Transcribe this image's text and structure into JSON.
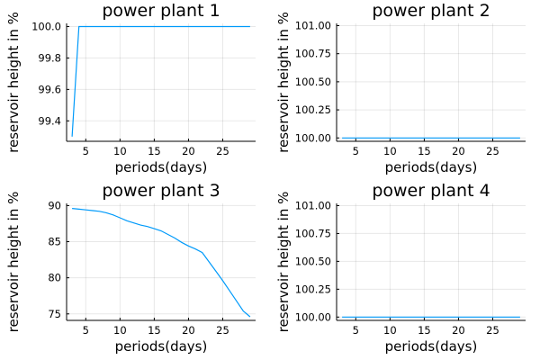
{
  "chart_data": [
    {
      "type": "line",
      "title": "power plant 1",
      "xlabel": "periods(days)",
      "ylabel": "reservoir height in %",
      "xlim": [
        2.2,
        29.8
      ],
      "ylim": [
        99.27,
        100.02
      ],
      "xticks": [
        5,
        10,
        15,
        20,
        25
      ],
      "xtick_labels": [
        "5",
        "10",
        "15",
        "20",
        "25"
      ],
      "yticks": [
        99.4,
        99.6,
        99.8,
        100.0
      ],
      "ytick_labels": [
        "99.4",
        "99.6",
        "99.8",
        "100.0"
      ],
      "grid": true,
      "legend": "none",
      "series_color": "#009AFA",
      "x": [
        3,
        4,
        5,
        10,
        15,
        20,
        25,
        29
      ],
      "y": [
        99.3,
        100.0,
        100.0,
        100.0,
        100.0,
        100.0,
        100.0,
        100.0
      ]
    },
    {
      "type": "line",
      "title": "power plant 2",
      "xlabel": "periods(days)",
      "ylabel": "reservoir height in %",
      "xlim": [
        2.2,
        29.8
      ],
      "ylim": [
        99.97,
        101.02
      ],
      "xticks": [
        5,
        10,
        15,
        20,
        25
      ],
      "xtick_labels": [
        "5",
        "10",
        "15",
        "20",
        "25"
      ],
      "yticks": [
        100.0,
        100.25,
        100.5,
        100.75,
        101.0
      ],
      "ytick_labels": [
        "100.00",
        "100.25",
        "100.50",
        "100.75",
        "101.00"
      ],
      "grid": true,
      "legend": "none",
      "series_color": "#009AFA",
      "x": [
        3,
        29
      ],
      "y": [
        100.0,
        100.0
      ]
    },
    {
      "type": "line",
      "title": "power plant 3",
      "xlabel": "periods(days)",
      "ylabel": "reservoir height in %",
      "xlim": [
        2.2,
        29.8
      ],
      "ylim": [
        74.1,
        90.3
      ],
      "xticks": [
        5,
        10,
        15,
        20,
        25
      ],
      "xtick_labels": [
        "5",
        "10",
        "15",
        "20",
        "25"
      ],
      "yticks": [
        75,
        80,
        85,
        90
      ],
      "ytick_labels": [
        "75",
        "80",
        "85",
        "90"
      ],
      "grid": true,
      "legend": "none",
      "series_color": "#009AFA",
      "x": [
        3,
        4,
        5,
        6,
        7,
        8,
        9,
        10,
        11,
        12,
        13,
        14,
        15,
        16,
        17,
        18,
        19,
        20,
        21,
        22,
        23,
        24,
        25,
        26,
        27,
        28,
        29
      ],
      "y": [
        89.6,
        89.5,
        89.4,
        89.3,
        89.2,
        89.0,
        88.7,
        88.3,
        87.9,
        87.6,
        87.3,
        87.1,
        86.8,
        86.5,
        86.0,
        85.5,
        84.9,
        84.4,
        84.0,
        83.5,
        82.2,
        80.9,
        79.6,
        78.2,
        76.8,
        75.4,
        74.6
      ]
    },
    {
      "type": "line",
      "title": "power plant 4",
      "xlabel": "periods(days)",
      "ylabel": "reservoir height in %",
      "xlim": [
        2.2,
        29.8
      ],
      "ylim": [
        99.97,
        101.02
      ],
      "xticks": [
        5,
        10,
        15,
        20,
        25
      ],
      "xtick_labels": [
        "5",
        "10",
        "15",
        "20",
        "25"
      ],
      "yticks": [
        100.0,
        100.25,
        100.5,
        100.75,
        101.0
      ],
      "ytick_labels": [
        "100.00",
        "100.25",
        "100.50",
        "100.75",
        "101.00"
      ],
      "grid": true,
      "legend": "none",
      "series_color": "#009AFA",
      "x": [
        3,
        29
      ],
      "y": [
        100.0,
        100.0
      ]
    }
  ]
}
